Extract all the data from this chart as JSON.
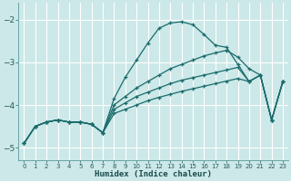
{
  "xlabel": "Humidex (Indice chaleur)",
  "background_color": "#cce8e8",
  "grid_color": "#ffffff",
  "line_color": "#1a6b6b",
  "xlim": [
    -0.5,
    23.5
  ],
  "ylim": [
    -5.3,
    -1.6
  ],
  "yticks": [
    -5,
    -4,
    -3,
    -2
  ],
  "xticks": [
    0,
    1,
    2,
    3,
    4,
    5,
    6,
    7,
    8,
    9,
    10,
    11,
    12,
    13,
    14,
    15,
    16,
    17,
    18,
    19,
    20,
    21,
    22,
    23
  ],
  "lines": [
    {
      "x": [
        0,
        1,
        2,
        3,
        4,
        5,
        6,
        7,
        8,
        9,
        10,
        11,
        12,
        13,
        14,
        15,
        16,
        17,
        18,
        19,
        20,
        21,
        22,
        23
      ],
      "y": [
        -4.9,
        -4.5,
        -4.4,
        -4.35,
        -4.4,
        -4.4,
        -4.45,
        -4.65,
        -3.85,
        -3.35,
        -2.95,
        -2.55,
        -2.2,
        -2.08,
        -2.05,
        -2.12,
        -2.35,
        -2.6,
        -2.65,
        -3.05,
        -3.45,
        -3.3,
        -4.35,
        -3.45
      ]
    },
    {
      "x": [
        0,
        1,
        2,
        3,
        4,
        5,
        6,
        7,
        8,
        9,
        10,
        11,
        12,
        13,
        14,
        15,
        16,
        17,
        18,
        19,
        20,
        21,
        22,
        23
      ],
      "y": [
        -4.9,
        -4.5,
        -4.4,
        -4.35,
        -4.4,
        -4.4,
        -4.45,
        -4.65,
        -4.0,
        -3.8,
        -3.6,
        -3.45,
        -3.3,
        -3.15,
        -3.05,
        -2.95,
        -2.85,
        -2.78,
        -2.72,
        -2.88,
        -3.15,
        -3.3,
        -4.35,
        -3.45
      ]
    },
    {
      "x": [
        0,
        1,
        2,
        3,
        4,
        5,
        6,
        7,
        8,
        9,
        10,
        11,
        12,
        13,
        14,
        15,
        16,
        17,
        18,
        19,
        20,
        21,
        22,
        23
      ],
      "y": [
        -4.9,
        -4.5,
        -4.4,
        -4.35,
        -4.4,
        -4.4,
        -4.45,
        -4.65,
        -4.1,
        -3.95,
        -3.8,
        -3.7,
        -3.6,
        -3.5,
        -3.42,
        -3.36,
        -3.3,
        -3.24,
        -3.18,
        -3.12,
        -3.45,
        -3.3,
        -4.35,
        -3.45
      ]
    },
    {
      "x": [
        0,
        1,
        2,
        3,
        4,
        5,
        6,
        7,
        8,
        9,
        10,
        11,
        12,
        13,
        14,
        15,
        16,
        17,
        18,
        19,
        20,
        21,
        22,
        23
      ],
      "y": [
        -4.9,
        -4.5,
        -4.4,
        -4.35,
        -4.4,
        -4.4,
        -4.45,
        -4.65,
        -4.2,
        -4.1,
        -4.0,
        -3.9,
        -3.82,
        -3.75,
        -3.68,
        -3.62,
        -3.56,
        -3.5,
        -3.44,
        -3.38,
        -3.45,
        -3.3,
        -4.35,
        -3.45
      ]
    }
  ]
}
